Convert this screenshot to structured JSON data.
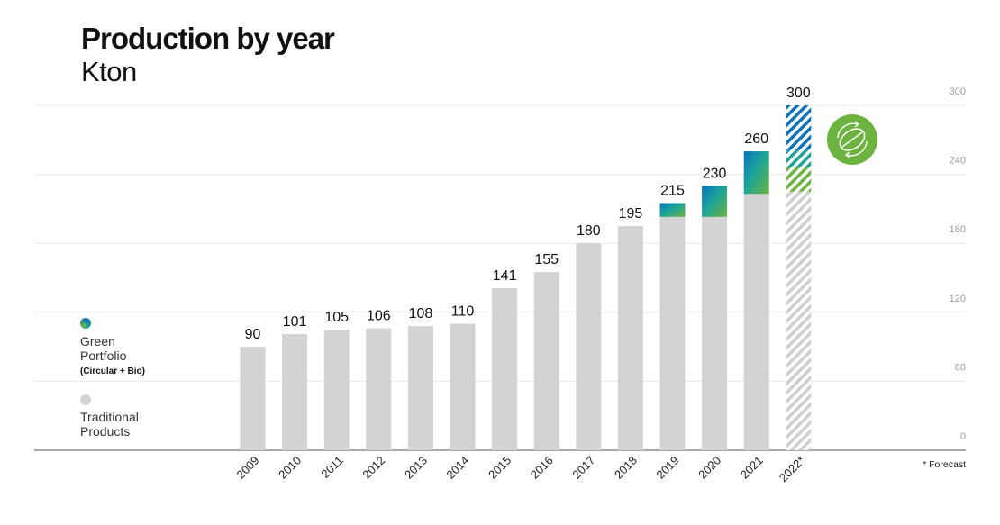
{
  "header": {
    "title": "Production by year",
    "subtitle": "Kton"
  },
  "legend": {
    "green": {
      "line1": "Green",
      "line2": "Portfolio",
      "note": "(Circular + Bio)"
    },
    "traditional": {
      "line1": "Traditional",
      "line2": "Products"
    }
  },
  "footnote": "* Forecast",
  "icon": "circular-bio-leaf-icon",
  "colors": {
    "traditional": "#d3d3d3",
    "green_blue": "#0a72bd",
    "green_mid": "#1aa49a",
    "green_green": "#6db33f",
    "grid": "#e9e9e9",
    "axis": "#777777",
    "badge": "#6db33f"
  },
  "chart_data": {
    "type": "bar",
    "title": "Production by year",
    "subtitle": "Kton",
    "categories": [
      "2009",
      "2010",
      "2011",
      "2012",
      "2013",
      "2014",
      "2015",
      "2016",
      "2017",
      "2018",
      "2019",
      "2020",
      "2021",
      "2022*"
    ],
    "series": [
      {
        "name": "Traditional Products",
        "values": [
          90,
          101,
          105,
          106,
          108,
          110,
          141,
          155,
          180,
          195,
          203,
          203,
          223,
          225
        ]
      },
      {
        "name": "Green Portfolio (Circular + Bio)",
        "values": [
          0,
          0,
          0,
          0,
          0,
          0,
          0,
          0,
          0,
          0,
          12,
          27,
          37,
          75
        ]
      }
    ],
    "totals": [
      90,
      101,
      105,
      106,
      108,
      110,
      141,
      155,
      180,
      195,
      215,
      230,
      260,
      300
    ],
    "forecast": [
      "2022*"
    ],
    "yticks": [
      0,
      60,
      120,
      180,
      240,
      300
    ],
    "ylim": [
      0,
      300
    ],
    "grid": true,
    "axis_side": "right"
  }
}
